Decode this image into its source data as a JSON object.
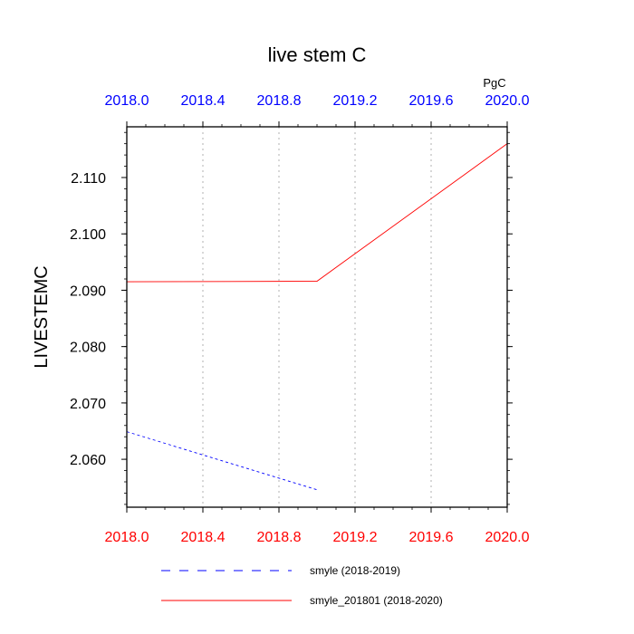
{
  "chart_data": {
    "type": "line",
    "title": "live stem C",
    "ylabel": "LIVESTEMC",
    "units": "PgC",
    "xlim": [
      2018.0,
      2020.0
    ],
    "ylim": [
      2.0515,
      2.119
    ],
    "x_ticks": [
      "2018.0",
      "2018.4",
      "2018.8",
      "2019.2",
      "2019.6",
      "2020.0"
    ],
    "x_tick_values": [
      2018.0,
      2018.4,
      2018.8,
      2019.2,
      2019.6,
      2020.0
    ],
    "y_ticks": [
      "2.060",
      "2.070",
      "2.080",
      "2.090",
      "2.100",
      "2.110"
    ],
    "y_tick_values": [
      2.06,
      2.07,
      2.08,
      2.09,
      2.1,
      2.11
    ],
    "top_tick_color": "#0000ff",
    "bottom_tick_color": "#ff0000",
    "grid": "vertical dotted",
    "series": [
      {
        "name": "smyle (2018-2019)",
        "color": "#0000ff",
        "dash": "dashed",
        "x": [
          2018.0,
          2019.0
        ],
        "y": [
          2.0649,
          2.0546
        ]
      },
      {
        "name": "smyle_201801 (2018-2020)",
        "color": "#ff0000",
        "dash": "solid",
        "x": [
          2018.0,
          2019.0,
          2020.0
        ],
        "y": [
          2.0915,
          2.0916,
          2.116
        ]
      }
    ]
  }
}
